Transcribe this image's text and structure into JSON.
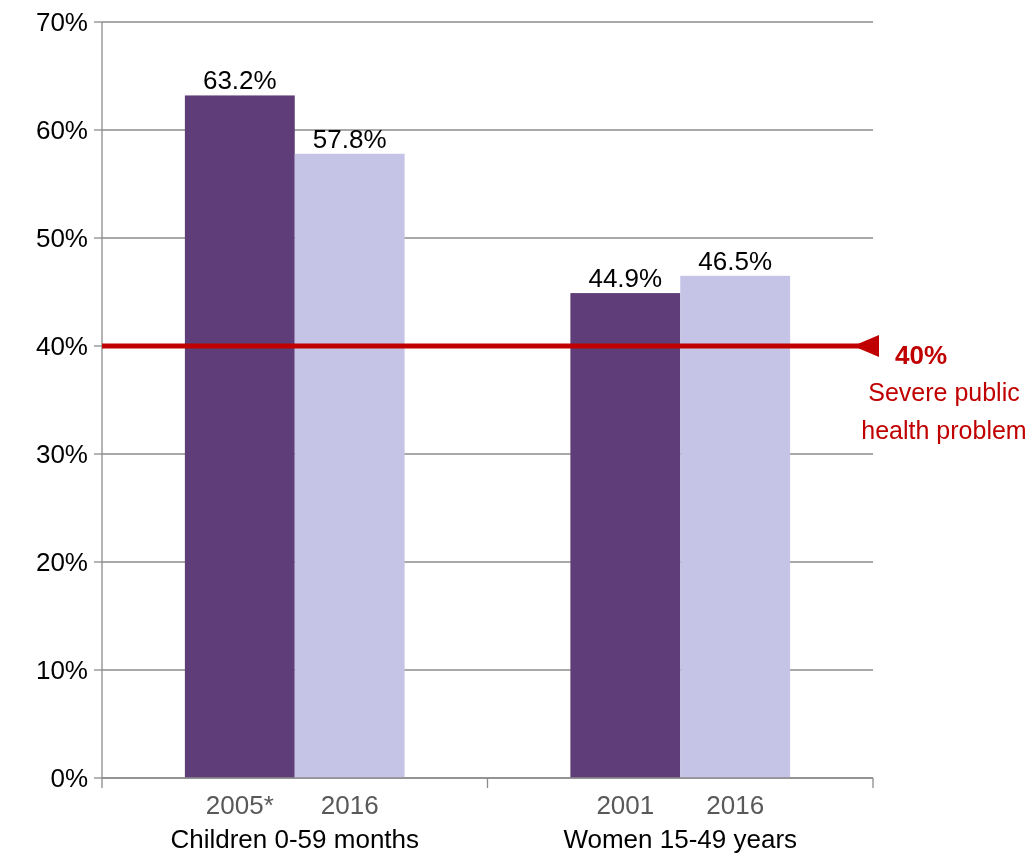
{
  "chart_data": {
    "type": "bar",
    "categories": [
      "2005*",
      "2016",
      "2001",
      "2016"
    ],
    "values": [
      63.2,
      57.8,
      44.9,
      46.5
    ],
    "colors": [
      "#5f3d78",
      "#c5c3e6",
      "#5f3d78",
      "#c5c3e6"
    ],
    "value_labels": [
      "63.2%",
      "57.8%",
      "44.9%",
      "46.5%"
    ],
    "ylim": [
      0,
      70
    ],
    "yticks": [
      {
        "value": 0,
        "label": "0%"
      },
      {
        "value": 10,
        "label": "10%"
      },
      {
        "value": 20,
        "label": "20%"
      },
      {
        "value": 30,
        "label": "30%"
      },
      {
        "value": 40,
        "label": "40%"
      },
      {
        "value": 50,
        "label": "50%"
      },
      {
        "value": 60,
        "label": "60%"
      },
      {
        "value": 70,
        "label": "70%"
      }
    ],
    "grid": "y",
    "ref_lines": [
      {
        "axis": "y",
        "value": 40,
        "label": "40%",
        "color": "#c00000"
      }
    ],
    "annotations": [
      "Children 0-59 months",
      "Women 15-49 years",
      "Severe public health problem"
    ]
  }
}
